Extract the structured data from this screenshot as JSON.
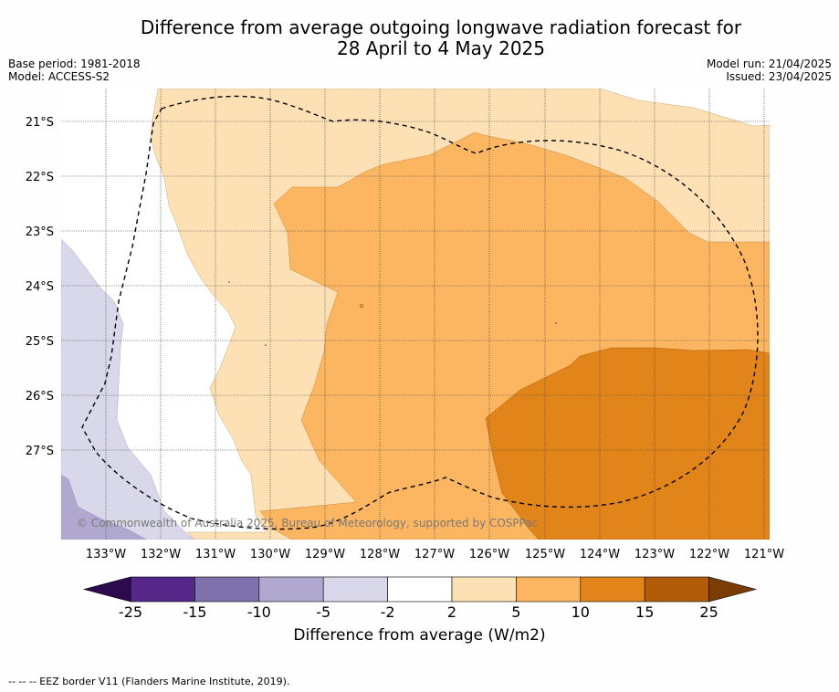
{
  "title_line1": "Difference from average outgoing longwave radiation forecast for",
  "title_line2": "28 April to 4 May 2025",
  "meta": {
    "base_period": "Base period: 1981-2018",
    "model": "Model: ACCESS-S2",
    "model_run": "Model run: 21/04/2025",
    "issued": "Issued: 23/04/2025"
  },
  "map": {
    "lat_labels": [
      "21°S",
      "22°S",
      "23°S",
      "24°S",
      "25°S",
      "26°S",
      "27°S"
    ],
    "lon_labels": [
      "133°W",
      "132°W",
      "131°W",
      "130°W",
      "129°W",
      "128°W",
      "127°W",
      "126°W",
      "125°W",
      "124°W",
      "123°W",
      "122°W",
      "121°W"
    ],
    "copyright": "© Commonwealth of Australia 2025, Bureau of Meteorology, supported by COSPPac"
  },
  "colorbar": {
    "ticks": [
      "-25",
      "-15",
      "-10",
      "-5",
      "-2",
      "2",
      "5",
      "10",
      "15",
      "25"
    ],
    "colors": [
      "#542789",
      "#7f71ab",
      "#b0a8cf",
      "#d8d8ea",
      "#ffffff",
      "#fee0b5",
      "#fcb561",
      "#e18419",
      "#b25c0a"
    ],
    "low_color": "#2d0a4d",
    "high_color": "#7b3c06",
    "label": "Difference from average (W/m2)"
  },
  "footer": "--  --  -- EEZ border V11 (Flanders Marine Institute, 2019)."
}
